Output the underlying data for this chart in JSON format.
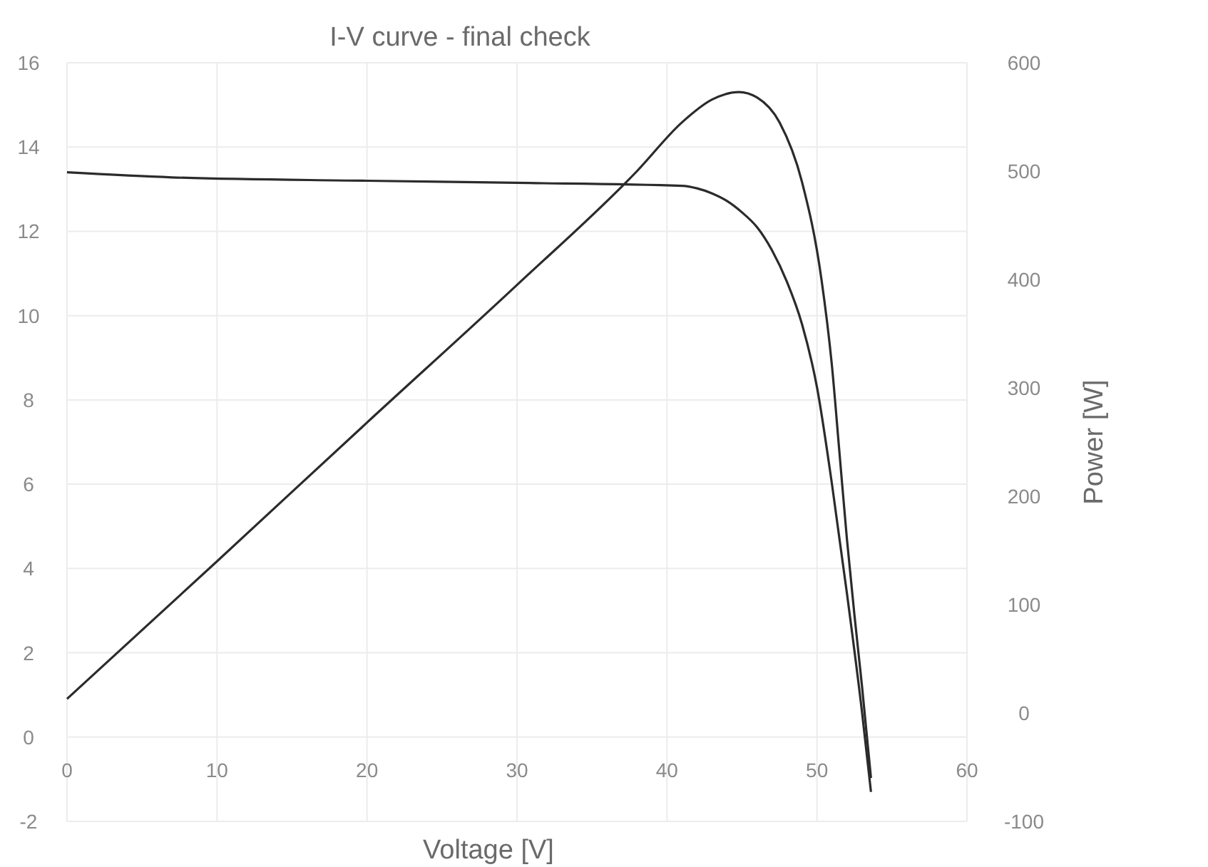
{
  "chart_data": {
    "type": "line",
    "title": "I-V curve - final check",
    "xlabel": "Voltage [V]",
    "y2label": "Power [W]",
    "xlim": [
      0,
      60
    ],
    "xticks": [
      0,
      10,
      20,
      30,
      40,
      50,
      60
    ],
    "ylim": [
      -2,
      16
    ],
    "yticks": [
      -2,
      0,
      2,
      4,
      6,
      8,
      10,
      12,
      14,
      16
    ],
    "y2lim": [
      -100,
      600
    ],
    "y2ticks": [
      -100,
      0,
      100,
      200,
      300,
      400,
      500,
      600
    ],
    "grid": true,
    "marker": "none",
    "line_style": "solid",
    "series": [
      {
        "color": "#2b2b2b",
        "x": [
          0,
          7,
          20,
          30,
          41,
          42,
          43,
          44,
          45,
          46,
          47,
          48,
          49,
          50,
          51,
          52,
          53,
          53.6
        ],
        "values": [
          13.4,
          13.28,
          13.2,
          13.15,
          13.08,
          13.02,
          12.9,
          12.72,
          12.45,
          12.1,
          11.55,
          10.8,
          9.8,
          8.3,
          6,
          3.4,
          0.6,
          -1.3
        ]
      },
      {
        "color": "#2b2b2b",
        "axis": "y2",
        "x": [
          0,
          10,
          20,
          30,
          38,
          41,
          43,
          44.8,
          46,
          47.5,
          49,
          50.3,
          51,
          51.5,
          52,
          52.5,
          53,
          53.6
        ],
        "values": [
          13,
          140,
          268,
          395,
          500,
          545,
          566,
          573,
          568,
          545,
          490,
          400,
          320,
          240,
          160,
          90,
          25,
          -60
        ]
      }
    ]
  }
}
